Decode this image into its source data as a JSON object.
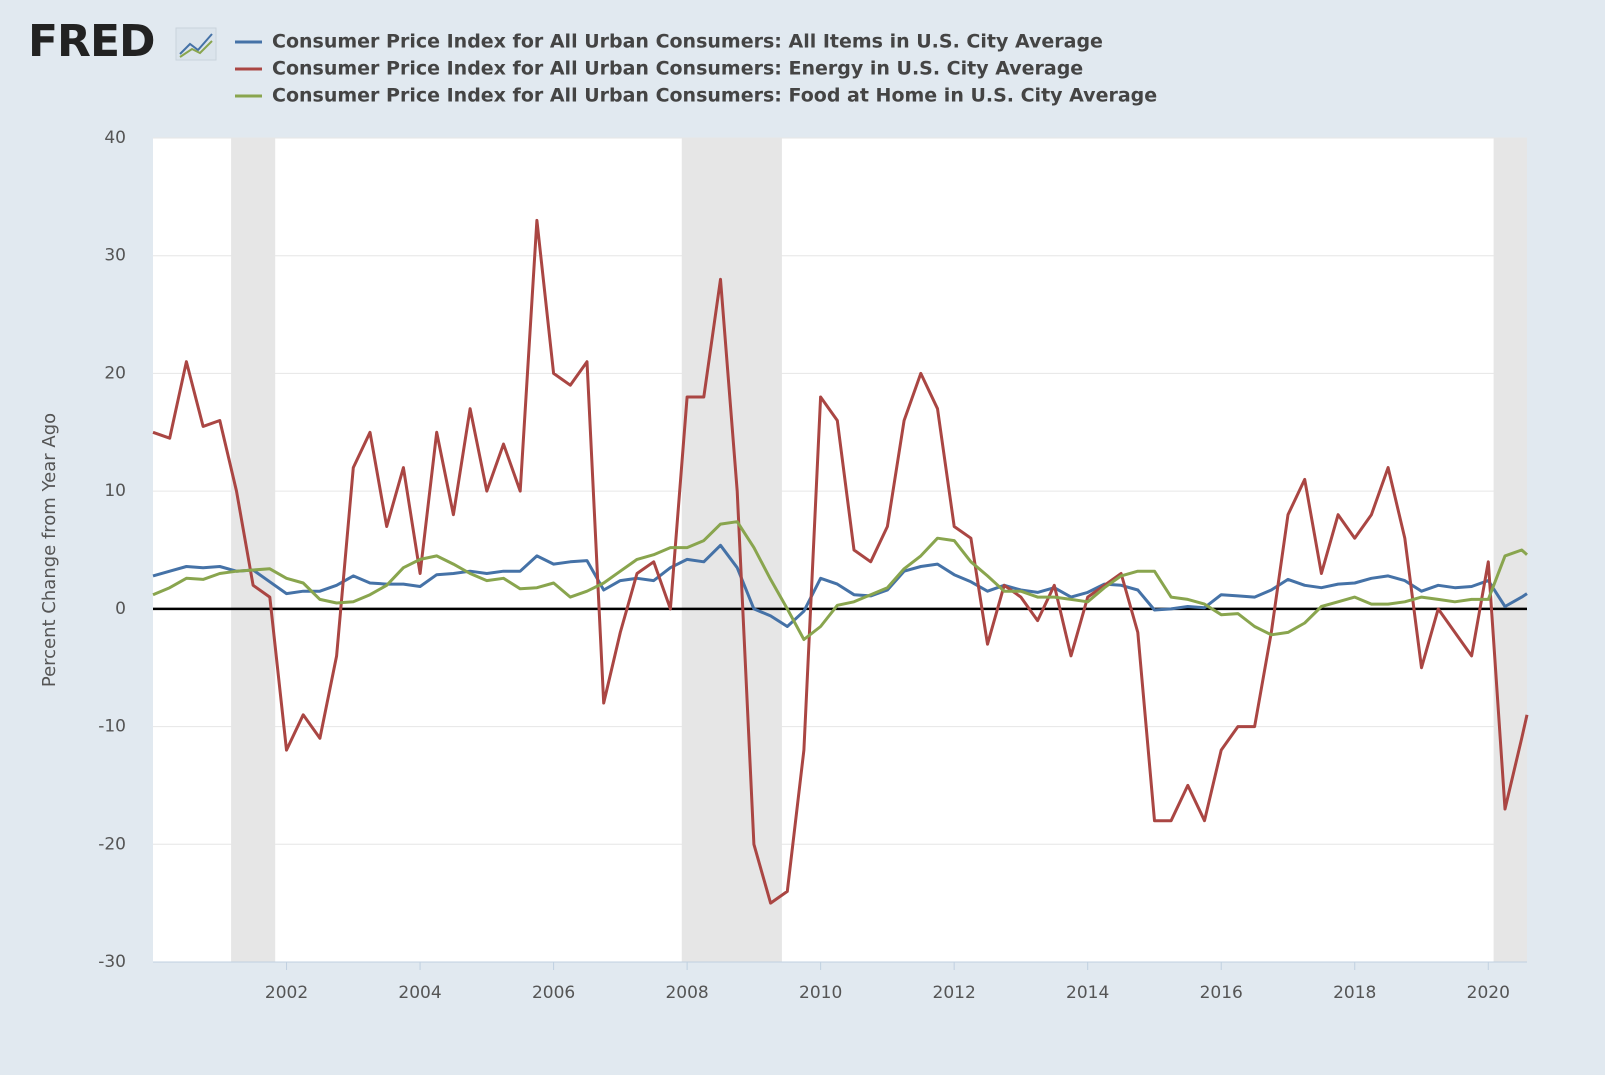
{
  "logo": "FRED",
  "chart_data": {
    "type": "line",
    "y_label": "Percent Change from Year Ago",
    "x": [
      2000,
      2000.25,
      2000.5,
      2000.75,
      2001,
      2001.25,
      2001.5,
      2001.75,
      2002,
      2002.25,
      2002.5,
      2002.75,
      2003,
      2003.25,
      2003.5,
      2003.75,
      2004,
      2004.25,
      2004.5,
      2004.75,
      2005,
      2005.25,
      2005.5,
      2005.75,
      2006,
      2006.25,
      2006.5,
      2006.75,
      2007,
      2007.25,
      2007.5,
      2007.75,
      2008,
      2008.25,
      2008.5,
      2008.75,
      2009,
      2009.25,
      2009.5,
      2009.75,
      2010,
      2010.25,
      2010.5,
      2010.75,
      2011,
      2011.25,
      2011.5,
      2011.75,
      2012,
      2012.25,
      2012.5,
      2012.75,
      2013,
      2013.25,
      2013.5,
      2013.75,
      2014,
      2014.25,
      2014.5,
      2014.75,
      2015,
      2015.25,
      2015.5,
      2015.75,
      2016,
      2016.25,
      2016.5,
      2016.75,
      2017,
      2017.25,
      2017.5,
      2017.75,
      2018,
      2018.25,
      2018.5,
      2018.75,
      2019,
      2019.25,
      2019.5,
      2019.75,
      2020,
      2020.25,
      2020.5,
      2020.58
    ],
    "series": [
      {
        "name": "Consumer Price Index for All Urban Consumers: All Items in U.S. City Average",
        "color": "#4572a7",
        "values": [
          2.8,
          3.2,
          3.6,
          3.5,
          3.6,
          3.2,
          3.3,
          2.3,
          1.3,
          1.5,
          1.5,
          2.0,
          2.8,
          2.2,
          2.1,
          2.1,
          1.9,
          2.9,
          3.0,
          3.2,
          3.0,
          3.2,
          3.2,
          4.5,
          3.8,
          4.0,
          4.1,
          1.6,
          2.4,
          2.6,
          2.4,
          3.5,
          4.2,
          4.0,
          5.4,
          3.5,
          0,
          -0.6,
          -1.5,
          -0.2,
          2.6,
          2.1,
          1.2,
          1.1,
          1.6,
          3.2,
          3.6,
          3.8,
          2.9,
          2.3,
          1.5,
          2.0,
          1.6,
          1.4,
          1.8,
          1.0,
          1.4,
          2.1,
          2.0,
          1.6,
          -0.1,
          0.0,
          0.2,
          0.1,
          1.2,
          1.1,
          1.0,
          1.6,
          2.5,
          2.0,
          1.8,
          2.1,
          2.2,
          2.6,
          2.8,
          2.4,
          1.5,
          2.0,
          1.8,
          1.9,
          2.4,
          0.2,
          1.0,
          1.3
        ]
      },
      {
        "name": "Consumer Price Index for All Urban Consumers: Energy in U.S. City Average",
        "color": "#aa4643",
        "values": [
          15,
          14.5,
          21,
          15.5,
          16,
          10,
          2,
          1,
          -12,
          -9,
          -11,
          -4,
          12,
          15,
          7,
          12,
          3,
          15,
          8,
          17,
          10,
          14,
          10,
          33,
          20,
          19,
          21,
          -8,
          -2,
          3,
          4,
          0,
          18,
          18,
          28,
          10,
          -20,
          -25,
          -24,
          -12,
          18,
          16,
          5,
          4,
          7,
          16,
          20,
          17,
          7,
          6,
          -3,
          2,
          1,
          -1,
          2,
          -4,
          1,
          2,
          3,
          -2,
          -18,
          -18,
          -15,
          -18,
          -12,
          -10,
          -10,
          -2,
          8,
          11,
          3,
          8,
          6,
          8,
          12,
          6,
          -5,
          0,
          -2,
          -4,
          4,
          -17,
          -11,
          -9
        ]
      },
      {
        "name": "Consumer Price Index for All Urban Consumers: Food at Home in U.S. City Average",
        "color": "#89a54e",
        "values": [
          1.2,
          1.8,
          2.6,
          2.5,
          3.0,
          3.2,
          3.3,
          3.4,
          2.6,
          2.2,
          0.8,
          0.5,
          0.6,
          1.2,
          2.0,
          3.5,
          4.2,
          4.5,
          3.8,
          3.0,
          2.4,
          2.6,
          1.7,
          1.8,
          2.2,
          1.0,
          1.5,
          2.2,
          3.2,
          4.2,
          4.6,
          5.2,
          5.2,
          5.8,
          7.2,
          7.4,
          5.2,
          2.5,
          0,
          -2.6,
          -1.5,
          0.3,
          0.6,
          1.2,
          1.8,
          3.4,
          4.5,
          6.0,
          5.8,
          4.0,
          2.8,
          1.5,
          1.5,
          1.0,
          1.0,
          0.8,
          0.6,
          1.8,
          2.8,
          3.2,
          3.2,
          1.0,
          0.8,
          0.4,
          -0.5,
          -0.4,
          -1.5,
          -2.2,
          -2.0,
          -1.2,
          0.2,
          0.6,
          1.0,
          0.4,
          0.4,
          0.6,
          1.0,
          0.8,
          0.6,
          0.8,
          0.8,
          4.5,
          5.0,
          4.6
        ]
      }
    ],
    "recessions": [
      [
        2001.17,
        2001.83
      ],
      [
        2007.92,
        2009.42
      ],
      [
        2020.08,
        2020.58
      ]
    ],
    "xlim": [
      2000,
      2020.58
    ],
    "xticks": [
      2002,
      2004,
      2006,
      2008,
      2010,
      2012,
      2014,
      2016,
      2018,
      2020
    ],
    "ylim": [
      -30,
      40
    ],
    "yticks": [
      -30,
      -20,
      -10,
      0,
      10,
      20,
      30,
      40
    ],
    "grid": true
  }
}
